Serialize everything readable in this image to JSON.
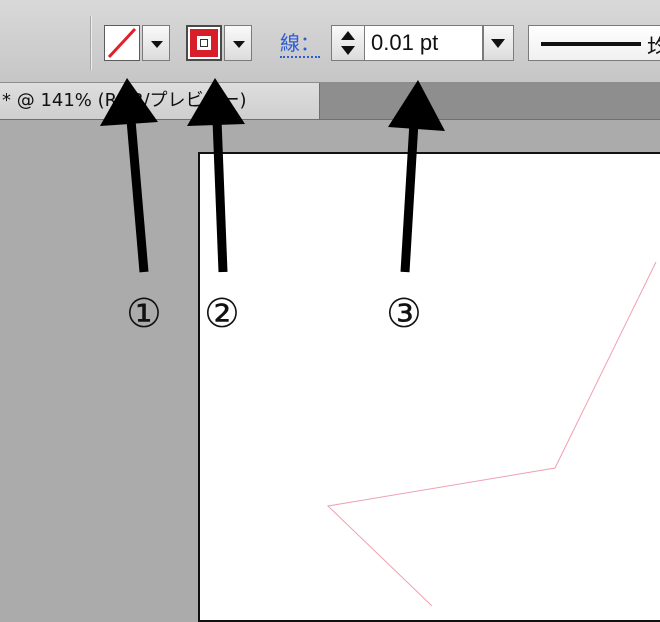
{
  "toolbar": {
    "fill_swatch_icon": "no-fill-slash-icon",
    "stroke_swatch_icon": "stroke-color-swatch-icon",
    "stroke_color": "#d91e2b",
    "stroke_label": "線：",
    "stroke_weight_value": "0.01 pt",
    "profile_text": "均"
  },
  "document_tab": {
    "title": "* @ 141% (RGB/プレビュー)"
  },
  "annotations": {
    "callout_1": "①",
    "callout_2": "②",
    "callout_3": "③"
  },
  "canvas": {
    "shape": "star-outline",
    "shape_stroke_color": "#f0a0b0"
  }
}
